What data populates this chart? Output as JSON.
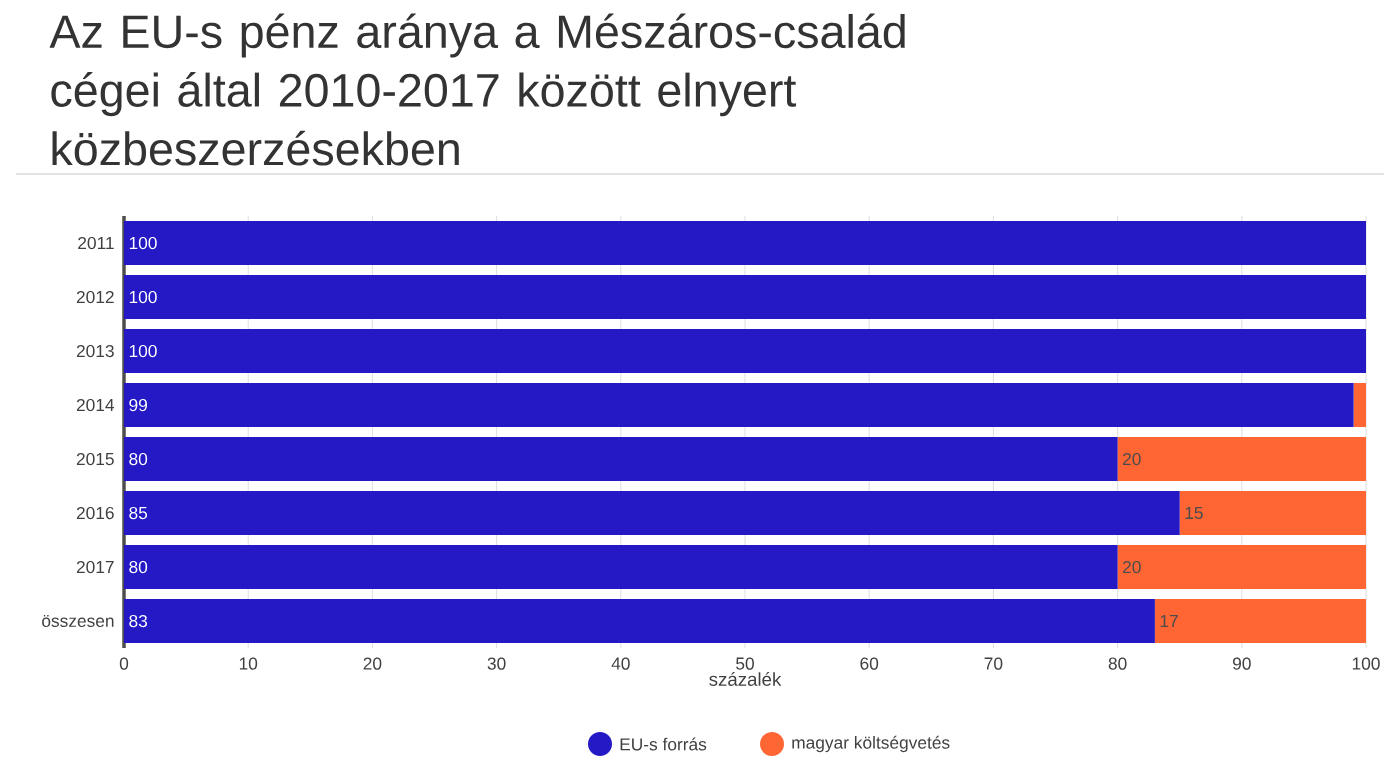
{
  "chart_data": {
    "type": "bar",
    "orientation": "horizontal",
    "stacked": true,
    "title": "Az EU-s pénz aránya a Mészáros-család cégei által 2010-2017 között elnyert közbeszerzésekben",
    "xlabel": "százalék",
    "categories": [
      "2011",
      "2012",
      "2013",
      "2014",
      "2015",
      "2016",
      "2017",
      "összesen"
    ],
    "series": [
      {
        "name": "EU-s forrás",
        "color": "#2419c4",
        "values": [
          100,
          100,
          100,
          99,
          80,
          85,
          80,
          83
        ],
        "value_labels": [
          "100",
          "100",
          "100",
          "99",
          "80",
          "85",
          "80",
          "83"
        ]
      },
      {
        "name": "magyar költségvetés",
        "color": "#ff6633",
        "values": [
          0,
          0,
          0,
          1,
          20,
          15,
          20,
          17
        ],
        "value_labels": [
          null,
          null,
          null,
          null,
          "20",
          "15",
          "20",
          "17"
        ]
      }
    ],
    "xlim": [
      0,
      100
    ],
    "xticks": [
      0,
      10,
      20,
      30,
      40,
      50,
      60,
      70,
      80,
      90,
      100
    ],
    "grid": "x",
    "legend": "bottom"
  }
}
